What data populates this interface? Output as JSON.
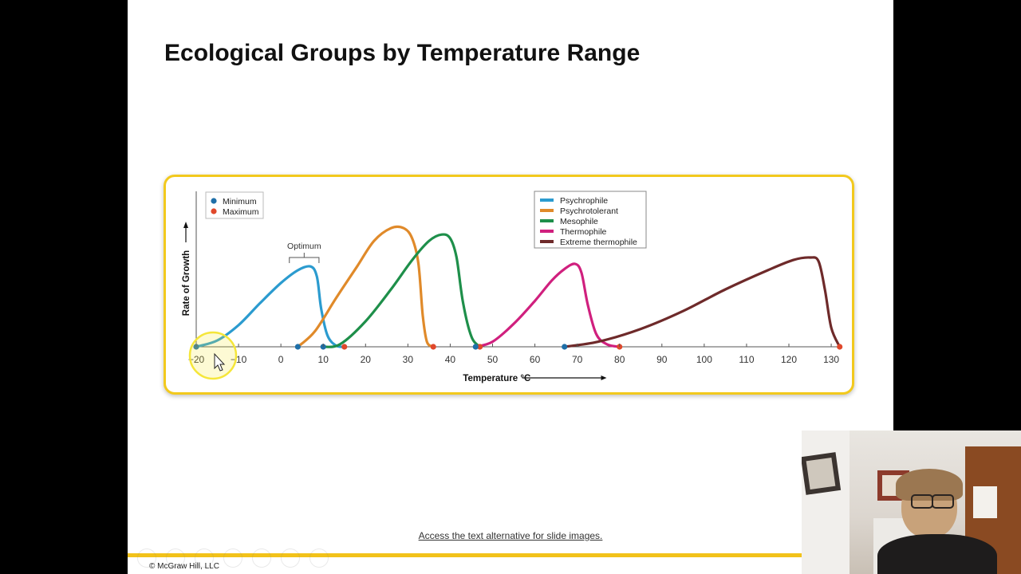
{
  "slide": {
    "title": "Ecological Groups by Temperature Range",
    "text_alternative_link": "Access the text alternative for slide images.",
    "copyright": "© McGraw Hill, LLC"
  },
  "colors": {
    "frame_border": "#f2c91d",
    "footer_bar": "#f2c21a",
    "minimum_marker": "#1f6fa8",
    "maximum_marker": "#e0482b",
    "highlight_circle": "#f5e63a"
  },
  "chart_data": {
    "type": "line",
    "title": "",
    "xlabel": "Temperature °C",
    "ylabel": "Rate of Growth",
    "xlim": [
      -20,
      133
    ],
    "ylim": [
      0,
      1.05
    ],
    "x_ticks": [
      -20,
      -10,
      0,
      10,
      20,
      30,
      40,
      50,
      60,
      70,
      80,
      90,
      100,
      110,
      120,
      130
    ],
    "x_tick_labels": [
      "−20",
      "−10",
      "0",
      "10",
      "20",
      "30",
      "40",
      "50",
      "60",
      "70",
      "80",
      "90",
      "100",
      "110",
      "120",
      "130"
    ],
    "grid": false,
    "annotations": [
      {
        "text": "Optimum",
        "x_range": [
          2,
          9
        ],
        "series": "Psychrophile"
      }
    ],
    "marker_legend": {
      "placement": "top-left",
      "items": [
        {
          "label": "Minimum",
          "color": "#1f6fa8"
        },
        {
          "label": "Maximum",
          "color": "#e0482b"
        }
      ]
    },
    "legend": {
      "placement": "top-center-right"
    },
    "series": [
      {
        "name": "Psychrophile",
        "color": "#2b9bcf",
        "points": [
          [
            -20,
            0
          ],
          [
            -15,
            0.05
          ],
          [
            -10,
            0.17
          ],
          [
            -5,
            0.34
          ],
          [
            0,
            0.5
          ],
          [
            4,
            0.6
          ],
          [
            7,
            0.63
          ],
          [
            8.5,
            0.55
          ],
          [
            9.5,
            0.3
          ],
          [
            11,
            0.09
          ],
          [
            13,
            0.01
          ],
          [
            15,
            0
          ]
        ],
        "minimum": -20,
        "maximum": 15
      },
      {
        "name": "Psychrotolerant",
        "color": "#e08a2a",
        "points": [
          [
            4,
            0
          ],
          [
            8,
            0.12
          ],
          [
            13,
            0.38
          ],
          [
            18,
            0.63
          ],
          [
            22,
            0.83
          ],
          [
            26,
            0.93
          ],
          [
            29,
            0.93
          ],
          [
            31,
            0.85
          ],
          [
            32.5,
            0.65
          ],
          [
            33.5,
            0.25
          ],
          [
            34.5,
            0.04
          ],
          [
            36,
            0
          ]
        ],
        "minimum": 4,
        "maximum": 36
      },
      {
        "name": "Mesophile",
        "color": "#1e8f4a",
        "points": [
          [
            10,
            0
          ],
          [
            14,
            0.02
          ],
          [
            20,
            0.2
          ],
          [
            26,
            0.45
          ],
          [
            31,
            0.68
          ],
          [
            35,
            0.83
          ],
          [
            38,
            0.88
          ],
          [
            40,
            0.85
          ],
          [
            41.5,
            0.7
          ],
          [
            43,
            0.35
          ],
          [
            45,
            0.08
          ],
          [
            47,
            0
          ]
        ],
        "minimum": 10,
        "maximum": 47
      },
      {
        "name": "Thermophile",
        "color": "#d0207e",
        "points": [
          [
            46,
            0
          ],
          [
            50,
            0.04
          ],
          [
            55,
            0.18
          ],
          [
            60,
            0.36
          ],
          [
            64,
            0.52
          ],
          [
            67,
            0.61
          ],
          [
            69.5,
            0.65
          ],
          [
            71,
            0.58
          ],
          [
            72.5,
            0.33
          ],
          [
            74.5,
            0.1
          ],
          [
            77,
            0.02
          ],
          [
            80,
            0
          ]
        ],
        "minimum": 46,
        "maximum": 80
      },
      {
        "name": "Extreme thermophile",
        "color": "#6e2a2a",
        "points": [
          [
            67,
            0
          ],
          [
            75,
            0.04
          ],
          [
            85,
            0.14
          ],
          [
            95,
            0.28
          ],
          [
            105,
            0.45
          ],
          [
            115,
            0.6
          ],
          [
            121,
            0.68
          ],
          [
            125,
            0.7
          ],
          [
            127,
            0.67
          ],
          [
            128.5,
            0.45
          ],
          [
            130,
            0.15
          ],
          [
            132,
            0
          ]
        ],
        "minimum": 67,
        "maximum": 132
      }
    ]
  }
}
